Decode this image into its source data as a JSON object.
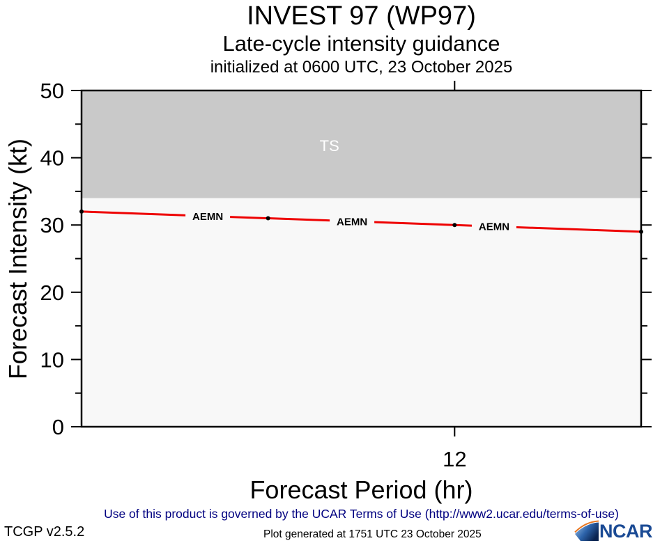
{
  "chart_data": {
    "type": "line",
    "title": "INVEST 97 (WP97)",
    "subtitle": "Late-cycle intensity guidance",
    "init_note": "initialized at 0600 UTC, 23 October 2025",
    "xlabel": "Forecast Period (hr)",
    "ylabel": "Forecast Intensity (kt)",
    "x": [
      0,
      6,
      12,
      18
    ],
    "series": [
      {
        "name": "AEMN",
        "values": [
          32,
          31,
          30,
          29
        ],
        "color": "#ee0000",
        "point_color": "#000000"
      }
    ],
    "xlim": [
      0,
      18
    ],
    "ylim": [
      0,
      50
    ],
    "x_ticks_labeled": [
      12
    ],
    "y_ticks_major": [
      0,
      10,
      20,
      30,
      40,
      50
    ],
    "y_ticks_minor": [
      5,
      15,
      25,
      35,
      45
    ],
    "bands": [
      {
        "label": "TS",
        "from": 34,
        "to": 50,
        "fill": "#c9c9c9",
        "label_color": "#ffffff"
      }
    ],
    "plot_bg": "#f8f8f8",
    "grid": false,
    "legend": "inline line labels",
    "line_labels": [
      {
        "text": "AEMN",
        "at_hr": 4.06
      },
      {
        "text": "AEMN",
        "at_hr": 8.7
      },
      {
        "text": "AEMN",
        "at_hr": 13.27
      }
    ]
  },
  "footer": {
    "terms": "Use of this product is governed by the UCAR Terms of Use (http://www2.ucar.edu/terms-of-use)",
    "version": "TCGP v2.5.2",
    "generated": "Plot generated at 1751 UTC   23 October 2025",
    "ncar": "NCAR"
  },
  "colors": {
    "terms_text": "#000080",
    "axis": "#000000",
    "ncar_blue": "#1a4a94",
    "ncar_orange": "#e87722"
  }
}
